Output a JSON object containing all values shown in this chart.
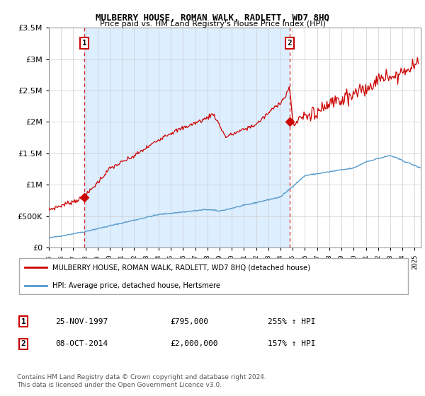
{
  "title": "MULBERRY HOUSE, ROMAN WALK, RADLETT, WD7 8HQ",
  "subtitle": "Price paid vs. HM Land Registry's House Price Index (HPI)",
  "sale1_date": "25-NOV-1997",
  "sale1_price": 795000,
  "sale1_pct": "255%",
  "sale2_date": "08-OCT-2014",
  "sale2_price": 2000000,
  "sale2_pct": "157%",
  "red_line_color": "#cc0000",
  "blue_line_color": "#5599cc",
  "bg_shade_color": "#ddeeff",
  "grid_color": "#cccccc",
  "legend_red_label": "MULBERRY HOUSE, ROMAN WALK, RADLETT, WD7 8HQ (detached house)",
  "legend_blue_label": "HPI: Average price, detached house, Hertsmere",
  "footer": "Contains HM Land Registry data © Crown copyright and database right 2024.\nThis data is licensed under the Open Government Licence v3.0.",
  "xmin": 1995.0,
  "xmax": 2025.5,
  "ymin": 0,
  "ymax": 3500000,
  "sale1_x": 1997.9,
  "sale2_x": 2014.75
}
